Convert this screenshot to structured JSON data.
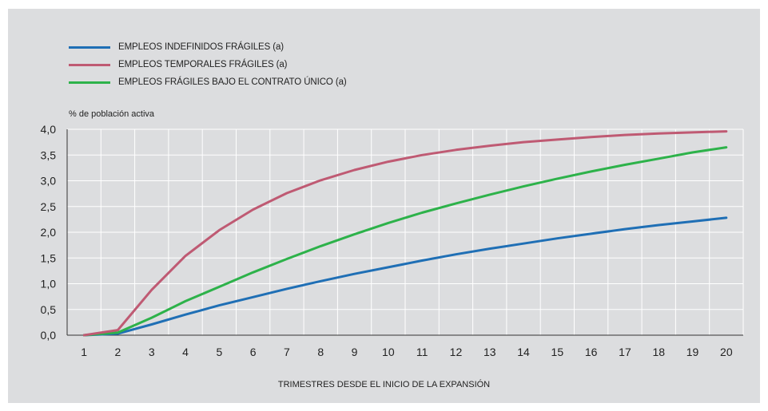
{
  "chart_data": {
    "type": "line",
    "xlabel": "TRIMESTRES DESDE EL INICIO DE LA EXPANSIÓN",
    "ylabel": "% de población activa",
    "x": [
      1,
      2,
      3,
      4,
      5,
      6,
      7,
      8,
      9,
      10,
      11,
      12,
      13,
      14,
      15,
      16,
      17,
      18,
      19,
      20
    ],
    "ylim": [
      0,
      4.0
    ],
    "yticks": [
      "0,0",
      "0,5",
      "1,0",
      "1,5",
      "2,0",
      "2,5",
      "3,0",
      "3,5",
      "4,0"
    ],
    "xticks": [
      "1",
      "2",
      "3",
      "4",
      "5",
      "6",
      "7",
      "8",
      "9",
      "10",
      "11",
      "12",
      "13",
      "14",
      "15",
      "16",
      "17",
      "18",
      "19",
      "20"
    ],
    "grid": true,
    "legend_position": "top-left",
    "series": [
      {
        "name": "EMPLEOS INDEFINIDOS FRÁGILES (a)",
        "color": "#1f6fb5",
        "values": [
          0.0,
          0.03,
          0.21,
          0.4,
          0.58,
          0.74,
          0.9,
          1.05,
          1.19,
          1.32,
          1.45,
          1.57,
          1.68,
          1.78,
          1.88,
          1.97,
          2.06,
          2.14,
          2.21,
          2.28
        ]
      },
      {
        "name": "EMPLEOS TEMPORALES FRÁGILES (a)",
        "color": "#bf5a73",
        "values": [
          0.0,
          0.1,
          0.88,
          1.54,
          2.04,
          2.44,
          2.76,
          3.01,
          3.21,
          3.37,
          3.5,
          3.6,
          3.68,
          3.75,
          3.8,
          3.85,
          3.89,
          3.92,
          3.94,
          3.96
        ]
      },
      {
        "name": "EMPLEOS FRÁGILES BAJO EL CONTRATO ÚNICO (a)",
        "color": "#2db24a",
        "values": [
          0.0,
          0.05,
          0.34,
          0.66,
          0.94,
          1.22,
          1.48,
          1.73,
          1.96,
          2.18,
          2.38,
          2.56,
          2.73,
          2.89,
          3.04,
          3.18,
          3.31,
          3.43,
          3.55,
          3.65
        ]
      }
    ]
  }
}
